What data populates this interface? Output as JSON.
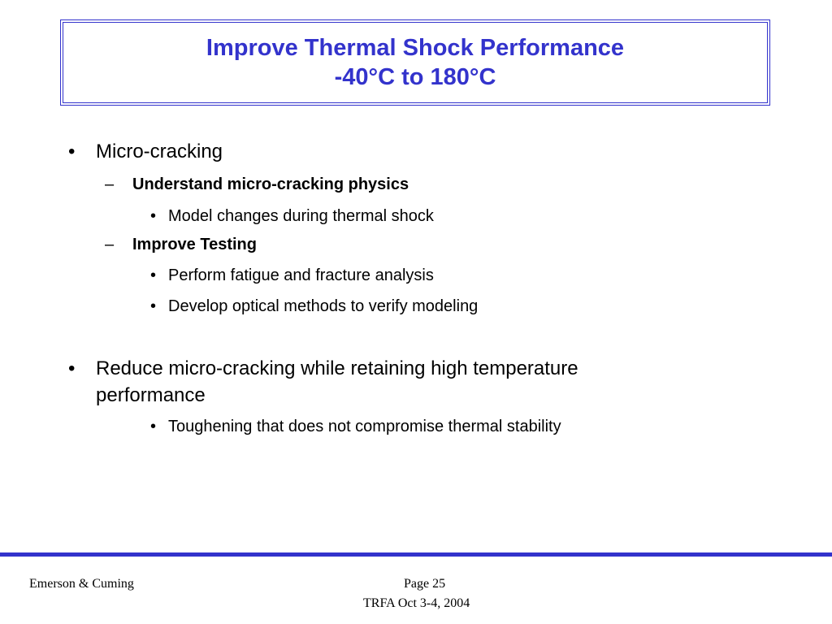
{
  "title": {
    "line1": "Improve Thermal Shock Performance",
    "line2": "-40°C to 180°C"
  },
  "bullets": {
    "b1": {
      "marker": "•",
      "text": "Micro-cracking",
      "sub1": {
        "marker": "–",
        "text": "Understand micro-cracking physics",
        "items": [
          {
            "marker": "•",
            "text": "Model changes during thermal shock"
          }
        ]
      },
      "sub2": {
        "marker": "–",
        "text": "Improve Testing",
        "items": [
          {
            "marker": "•",
            "text": "Perform fatigue and fracture analysis"
          },
          {
            "marker": "•",
            "text": "Develop optical methods to verify modeling"
          }
        ]
      }
    },
    "b2": {
      "marker": "•",
      "line1": "Reduce micro-cracking while retaining high temperature",
      "line2": "performance",
      "items": [
        {
          "marker": "•",
          "text": "Toughening that does not compromise thermal stability"
        }
      ]
    }
  },
  "footer": {
    "company": "Emerson & Cuming",
    "page": "Page 25",
    "event": "TRFA Oct 3-4, 2004"
  },
  "colors": {
    "accent": "#3333cc",
    "text": "#000000",
    "background": "#ffffff"
  }
}
